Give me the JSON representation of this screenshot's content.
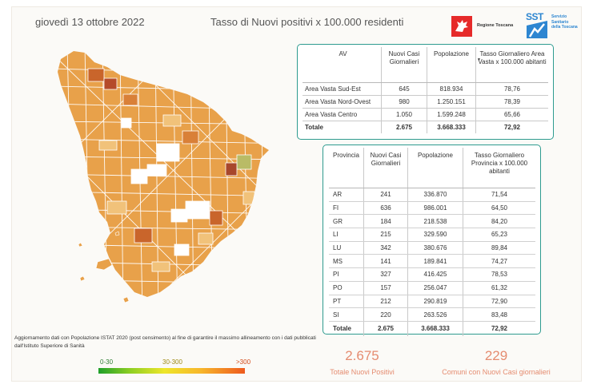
{
  "header": {
    "date": "giovedì 13 ottobre 2022",
    "title": "Tasso di Nuovi positivi x 100.000 residenti"
  },
  "logos": {
    "regione": "Regione Toscana",
    "sst_abbr": "SST",
    "sst_sub": "Servizio Sanitario della Toscana"
  },
  "av_table": {
    "headers": [
      "AV",
      "Nuovi Casi Giornalieri",
      "Popolazione",
      "Tasso Giornaliero Area Vasta x 100.000 abitanti"
    ],
    "rows": [
      {
        "name": "Area Vasta Sud-Est",
        "cases": "645",
        "pop": "818.934",
        "rate": "78,76"
      },
      {
        "name": "Area Vasta Nord-Ovest",
        "cases": "980",
        "pop": "1.250.151",
        "rate": "78,39"
      },
      {
        "name": "Area Vasta Centro",
        "cases": "1.050",
        "pop": "1.599.248",
        "rate": "65,66"
      }
    ],
    "total": {
      "name": "Totale",
      "cases": "2.675",
      "pop": "3.668.333",
      "rate": "72,92"
    }
  },
  "prov_table": {
    "headers": [
      "Provincia",
      "Nuovi Casi Giornalieri",
      "Popolazione",
      "Tasso Giornaliero Provincia x 100.000 abitanti"
    ],
    "rows": [
      {
        "name": "AR",
        "cases": "241",
        "pop": "336.870",
        "rate": "71,54"
      },
      {
        "name": "FI",
        "cases": "636",
        "pop": "986.001",
        "rate": "64,50"
      },
      {
        "name": "GR",
        "cases": "184",
        "pop": "218.538",
        "rate": "84,20"
      },
      {
        "name": "LI",
        "cases": "215",
        "pop": "329.590",
        "rate": "65,23"
      },
      {
        "name": "LU",
        "cases": "342",
        "pop": "380.676",
        "rate": "89,84"
      },
      {
        "name": "MS",
        "cases": "141",
        "pop": "189.841",
        "rate": "74,27"
      },
      {
        "name": "PI",
        "cases": "327",
        "pop": "416.425",
        "rate": "78,53"
      },
      {
        "name": "PO",
        "cases": "157",
        "pop": "256.047",
        "rate": "61,32"
      },
      {
        "name": "PT",
        "cases": "212",
        "pop": "290.819",
        "rate": "72,90"
      },
      {
        "name": "SI",
        "cases": "220",
        "pop": "263.526",
        "rate": "83,48"
      }
    ],
    "total": {
      "name": "Totale",
      "cases": "2.675",
      "pop": "3.668.333",
      "rate": "72,92"
    }
  },
  "note": "Aggiornamento dati con Popolazione ISTAT 2020 (post censimento) al fine di garantire il massimo allineamento con i dati pubblicati dall'Istituto Superiore di Sanità",
  "legend": {
    "low": "0-30",
    "mid": "30-300",
    "high": ">300"
  },
  "kpi": {
    "total_value": "2.675",
    "total_label": "Totale Nuovi Positivi",
    "comuni_value": "229",
    "comuni_label": "Comuni con Nuovi Casi giornalieri"
  },
  "colors": {
    "accent": "#2e9b8f",
    "kpi": "#e58c70",
    "map_fill": "#e8a14a",
    "map_dark": "#c9652b",
    "map_light": "#f1c27a",
    "map_green": "#b9bb66",
    "map_white": "#ffffff"
  }
}
